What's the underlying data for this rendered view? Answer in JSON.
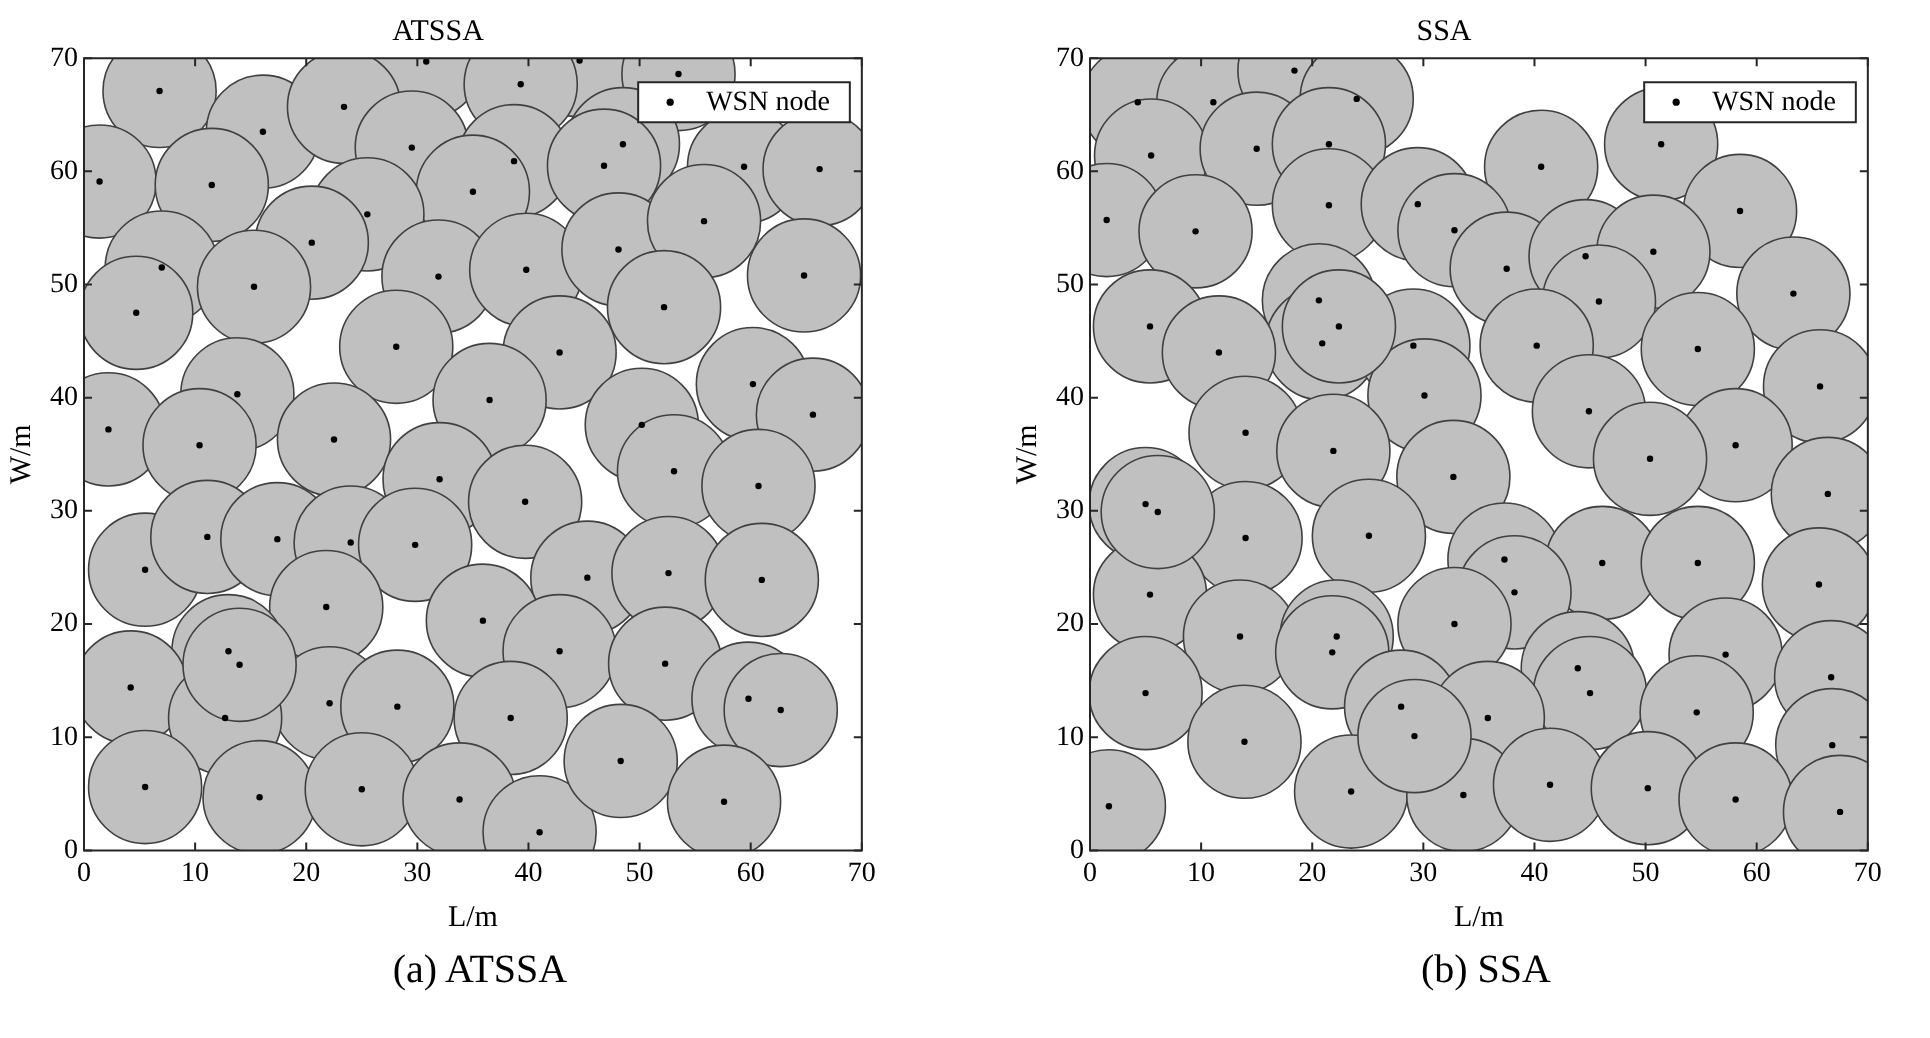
{
  "chart_data": [
    {
      "type": "scatter",
      "title": "ATSSA",
      "xlabel": "L/m",
      "ylabel": "W/m",
      "xlim": [
        0,
        70
      ],
      "ylim": [
        0,
        70
      ],
      "xticks": [
        0,
        10,
        20,
        30,
        40,
        50,
        60,
        70
      ],
      "yticks": [
        0,
        10,
        20,
        30,
        40,
        50,
        60,
        70
      ],
      "grid": false,
      "legend": "top right",
      "marker": "circle",
      "annotations": [
        "(a) ATSSA"
      ],
      "series": [
        {
          "type": "bubble",
          "color": "#c0c0c0",
          "x": [
            6.8,
            30.8,
            44.6,
            39.3,
            53.5,
            16.1,
            23.4,
            29.5,
            1.4,
            11.5,
            38.7,
            48.5,
            46.8,
            59.4,
            66.2,
            35.0,
            25.5,
            20.5,
            7.0,
            4.7,
            15.3,
            31.9,
            39.8,
            48.1,
            55.8,
            64.8,
            52.2,
            28.1,
            42.8,
            13.8,
            36.5,
            60.2,
            65.6,
            2.2,
            10.4,
            22.5,
            50.2,
            32.0,
            39.7,
            53.1,
            60.7,
            5.5,
            11.1,
            17.4,
            24.0,
            29.8,
            45.3,
            52.6,
            61.0,
            21.8,
            35.9,
            13.0,
            42.8,
            52.3,
            4.2,
            22.1,
            28.2,
            12.7,
            38.4,
            59.8,
            62.7,
            5.5,
            15.8,
            25.0,
            33.8,
            41.0,
            48.3,
            57.6,
            14.0
          ],
          "values": [
            67.1,
            69.7,
            69.8,
            67.7,
            68.6,
            63.5,
            65.7,
            62.1,
            59.1,
            58.8,
            60.9,
            62.4,
            60.5,
            60.4,
            60.2,
            58.2,
            56.2,
            53.7,
            51.5,
            47.5,
            49.8,
            50.7,
            51.3,
            53.1,
            55.6,
            50.8,
            48.0,
            44.5,
            44.0,
            40.3,
            39.8,
            41.2,
            38.5,
            37.2,
            35.8,
            36.3,
            37.6,
            32.8,
            30.8,
            33.5,
            32.2,
            24.8,
            27.7,
            27.5,
            27.2,
            27.0,
            24.1,
            24.5,
            23.9,
            21.5,
            20.3,
            17.6,
            17.6,
            16.5,
            14.4,
            13.0,
            12.7,
            11.7,
            11.7,
            13.4,
            12.4,
            5.6,
            4.7,
            5.4,
            4.5,
            1.6,
            7.9,
            4.3,
            16.4
          ],
          "sizes": [
            1,
            1,
            1,
            1,
            1,
            1,
            1,
            1,
            1,
            1,
            1,
            1,
            1,
            1,
            1,
            1,
            1,
            1,
            1,
            1,
            1,
            1,
            1,
            1,
            1,
            1,
            1,
            1,
            1,
            1,
            1,
            1,
            1,
            1,
            1,
            1,
            1,
            1,
            1,
            1,
            1,
            1,
            1,
            1,
            1,
            1,
            1,
            1,
            1,
            1,
            1,
            1,
            1,
            1,
            1,
            1,
            1,
            1,
            1,
            1,
            1,
            1,
            1,
            1,
            1,
            1,
            1,
            1,
            1
          ]
        },
        {
          "name": "WSN node",
          "color": "#000000",
          "x": [
            6.8,
            30.8,
            44.6,
            39.3,
            53.5,
            16.1,
            23.4,
            29.5,
            1.4,
            11.5,
            38.7,
            48.5,
            46.8,
            59.4,
            66.2,
            35.0,
            25.5,
            20.5,
            7.0,
            4.7,
            15.3,
            31.9,
            39.8,
            48.1,
            55.8,
            64.8,
            52.2,
            28.1,
            42.8,
            13.8,
            36.5,
            60.2,
            65.6,
            2.2,
            10.4,
            22.5,
            50.2,
            32.0,
            39.7,
            53.1,
            60.7,
            5.5,
            11.1,
            17.4,
            24.0,
            29.8,
            45.3,
            52.6,
            61.0,
            21.8,
            35.9,
            13.0,
            42.8,
            52.3,
            4.2,
            22.1,
            28.2,
            12.7,
            38.4,
            59.8,
            62.7,
            5.5,
            15.8,
            25.0,
            33.8,
            41.0,
            48.3,
            57.6,
            14.0
          ],
          "values": [
            67.1,
            69.7,
            69.8,
            67.7,
            68.6,
            63.5,
            65.7,
            62.1,
            59.1,
            58.8,
            60.9,
            62.4,
            60.5,
            60.4,
            60.2,
            58.2,
            56.2,
            53.7,
            51.5,
            47.5,
            49.8,
            50.7,
            51.3,
            53.1,
            55.6,
            50.8,
            48.0,
            44.5,
            44.0,
            40.3,
            39.8,
            41.2,
            38.5,
            37.2,
            35.8,
            36.3,
            37.6,
            32.8,
            30.8,
            33.5,
            32.2,
            24.8,
            27.7,
            27.5,
            27.2,
            27.0,
            24.1,
            24.5,
            23.9,
            21.5,
            20.3,
            17.6,
            17.6,
            16.5,
            14.4,
            13.0,
            12.7,
            11.7,
            11.7,
            13.4,
            12.4,
            5.6,
            4.7,
            5.4,
            4.5,
            1.6,
            7.9,
            4.3,
            16.4
          ]
        }
      ]
    },
    {
      "type": "scatter",
      "title": "SSA",
      "xlabel": "L/m",
      "ylabel": "W/m",
      "xlim": [
        0,
        70
      ],
      "ylim": [
        0,
        70
      ],
      "xticks": [
        0,
        10,
        20,
        30,
        40,
        50,
        60,
        70
      ],
      "yticks": [
        0,
        10,
        20,
        30,
        40,
        50,
        60,
        70
      ],
      "grid": false,
      "legend": "top right",
      "marker": "circle",
      "annotations": [
        "(b) SSA"
      ],
      "series": [
        {
          "type": "bubble",
          "color": "#c0c0c0",
          "x": [
            4.3,
            11.1,
            18.4,
            24.0,
            5.5,
            15.0,
            21.5,
            51.4,
            40.6,
            1.5,
            9.5,
            21.5,
            29.5,
            32.8,
            58.5,
            37.5,
            44.6,
            50.7,
            45.8,
            63.3,
            5.4,
            20.6,
            20.9,
            11.6,
            29.1,
            40.2,
            54.7,
            30.1,
            65.7,
            44.9,
            14.0,
            58.1,
            21.9,
            50.4,
            32.7,
            66.4,
            5.0,
            14.0,
            25.1,
            37.3,
            46.1,
            54.7,
            38.2,
            65.6,
            5.4,
            32.8,
            13.5,
            22.2,
            21.8,
            57.2,
            43.9,
            66.7,
            5.0,
            28.0,
            45.0,
            54.6,
            35.8,
            13.9,
            66.8,
            1.7,
            23.5,
            33.6,
            41.4,
            50.2,
            58.1,
            67.5,
            22.4,
            6.1,
            29.2
          ],
          "values": [
            66.1,
            66.1,
            68.9,
            66.4,
            61.4,
            62.0,
            62.4,
            62.4,
            60.4,
            55.7,
            54.7,
            57.0,
            57.1,
            54.8,
            56.5,
            51.4,
            52.5,
            52.9,
            48.5,
            49.2,
            46.3,
            48.6,
            44.8,
            44.0,
            44.6,
            44.6,
            44.3,
            40.2,
            41.0,
            38.8,
            36.9,
            35.8,
            35.3,
            34.6,
            33.0,
            31.5,
            30.6,
            27.6,
            27.8,
            25.7,
            25.4,
            25.4,
            22.8,
            23.5,
            22.6,
            20.0,
            18.9,
            18.9,
            17.5,
            17.3,
            16.1,
            15.3,
            13.9,
            12.7,
            13.9,
            12.2,
            11.7,
            9.6,
            9.3,
            3.9,
            5.2,
            4.9,
            5.8,
            5.5,
            4.5,
            3.4,
            46.3,
            29.9,
            10.1
          ],
          "sizes": [
            1,
            1,
            1,
            1,
            1,
            1,
            1,
            1,
            1,
            1,
            1,
            1,
            1,
            1,
            1,
            1,
            1,
            1,
            1,
            1,
            1,
            1,
            1,
            1,
            1,
            1,
            1,
            1,
            1,
            1,
            1,
            1,
            1,
            1,
            1,
            1,
            1,
            1,
            1,
            1,
            1,
            1,
            1,
            1,
            1,
            1,
            1,
            1,
            1,
            1,
            1,
            1,
            1,
            1,
            1,
            1,
            1,
            1,
            1,
            1,
            1,
            1,
            1,
            1,
            1,
            1,
            1,
            1,
            1
          ]
        },
        {
          "name": "WSN node",
          "color": "#000000",
          "x": [
            4.3,
            11.1,
            18.4,
            24.0,
            5.5,
            15.0,
            21.5,
            51.4,
            40.6,
            1.5,
            9.5,
            21.5,
            29.5,
            32.8,
            58.5,
            37.5,
            44.6,
            50.7,
            45.8,
            63.3,
            5.4,
            20.6,
            20.9,
            11.6,
            29.1,
            40.2,
            54.7,
            30.1,
            65.7,
            44.9,
            14.0,
            58.1,
            21.9,
            50.4,
            32.7,
            66.4,
            5.0,
            14.0,
            25.1,
            37.3,
            46.1,
            54.7,
            38.2,
            65.6,
            5.4,
            32.8,
            13.5,
            22.2,
            21.8,
            57.2,
            43.9,
            66.7,
            5.0,
            28.0,
            45.0,
            54.6,
            35.8,
            13.9,
            66.8,
            1.7,
            23.5,
            33.6,
            41.4,
            50.2,
            58.1,
            67.5,
            22.4,
            6.1,
            29.2
          ],
          "values": [
            66.1,
            66.1,
            68.9,
            66.4,
            61.4,
            62.0,
            62.4,
            62.4,
            60.4,
            55.7,
            54.7,
            57.0,
            57.1,
            54.8,
            56.5,
            51.4,
            52.5,
            52.9,
            48.5,
            49.2,
            46.3,
            48.6,
            44.8,
            44.0,
            44.6,
            44.6,
            44.3,
            40.2,
            41.0,
            38.8,
            36.9,
            35.8,
            35.3,
            34.6,
            33.0,
            31.5,
            30.6,
            27.6,
            27.8,
            25.7,
            25.4,
            25.4,
            22.8,
            23.5,
            22.6,
            20.0,
            18.9,
            18.9,
            17.5,
            17.3,
            16.1,
            15.3,
            13.9,
            12.7,
            13.9,
            12.2,
            11.7,
            9.6,
            9.3,
            3.9,
            5.2,
            4.9,
            5.8,
            5.5,
            4.5,
            3.4,
            46.3,
            29.9,
            10.1
          ]
        }
      ]
    }
  ]
}
